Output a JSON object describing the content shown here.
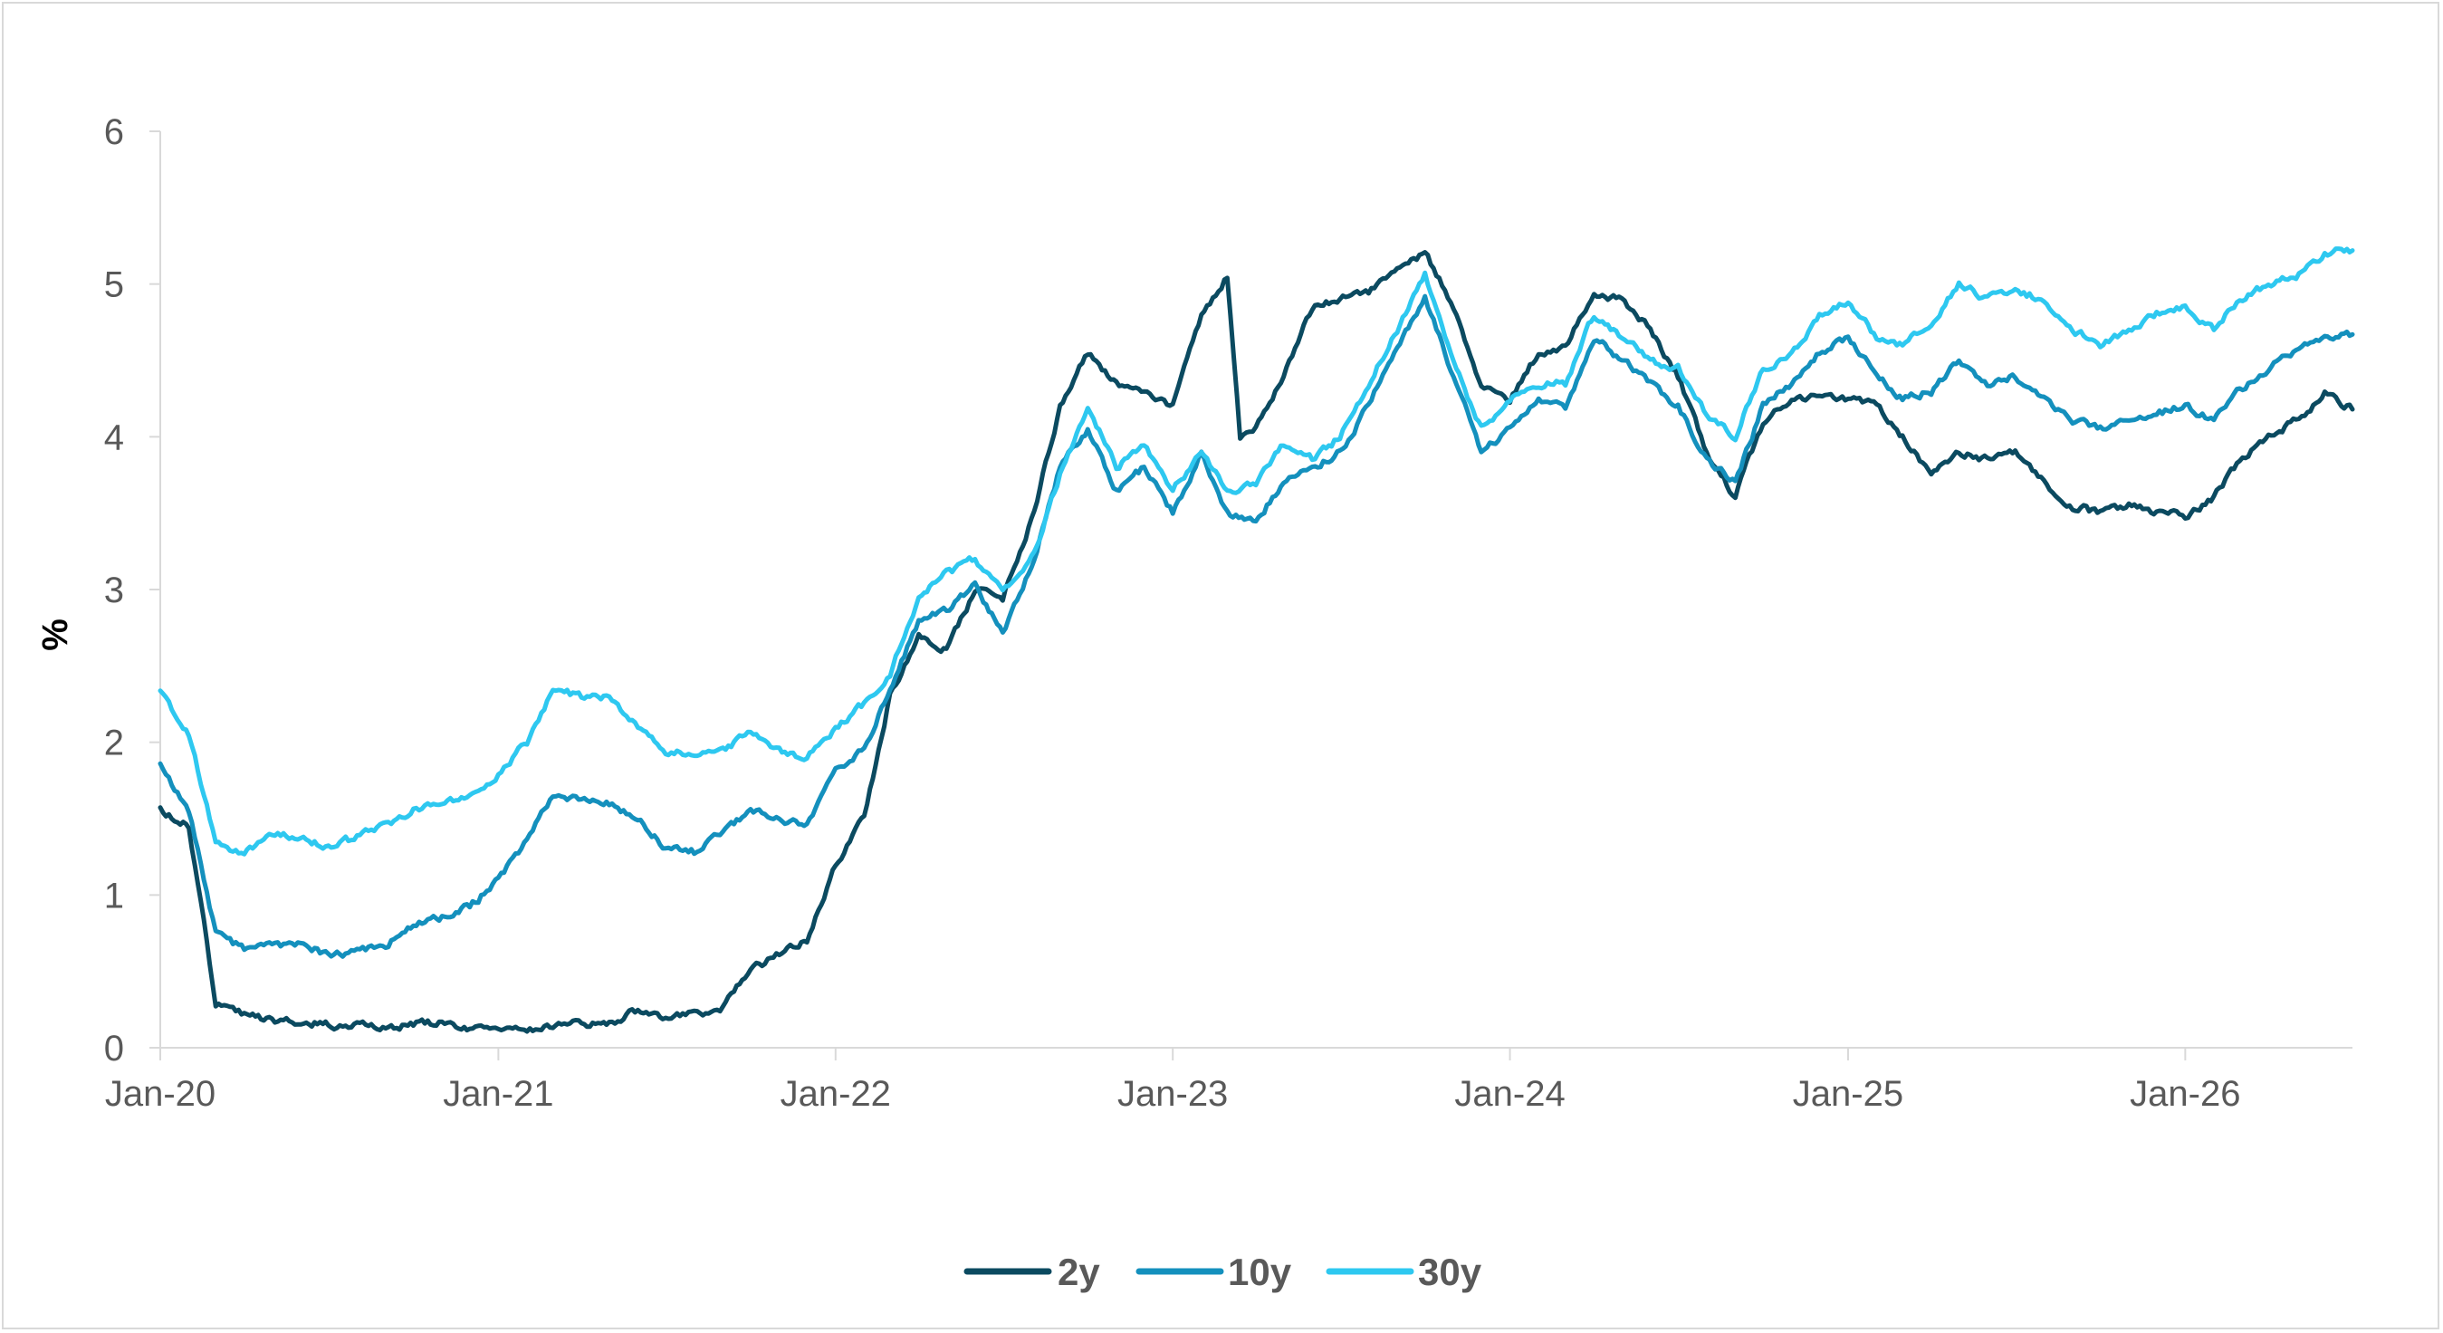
{
  "chart_data": {
    "type": "line",
    "xlabel": "",
    "ylabel": "%",
    "ylim": [
      0,
      6
    ],
    "yticks": [
      0,
      1,
      2,
      3,
      4,
      5,
      6
    ],
    "xlim": [
      "2020-01",
      "2026-07"
    ],
    "xticks": [
      {
        "date": "2020-01",
        "label": "Jan-20"
      },
      {
        "date": "2021-01",
        "label": "Jan-21"
      },
      {
        "date": "2022-01",
        "label": "Jan-22"
      },
      {
        "date": "2023-01",
        "label": "Jan-23"
      },
      {
        "date": "2024-01",
        "label": "Jan-24"
      },
      {
        "date": "2025-01",
        "label": "Jan-25"
      },
      {
        "date": "2026-01",
        "label": "Jan-26"
      }
    ],
    "grid": false,
    "legend_position": "bottom",
    "series": [
      {
        "name": "2y",
        "color": "#0b4a60",
        "points": [
          [
            "2020-01",
            1.56
          ],
          [
            "2020-02",
            1.45
          ],
          [
            "2020-03",
            0.3
          ],
          [
            "2020-04",
            0.22
          ],
          [
            "2020-05",
            0.17
          ],
          [
            "2020-06",
            0.18
          ],
          [
            "2020-07",
            0.15
          ],
          [
            "2020-08",
            0.14
          ],
          [
            "2020-09",
            0.14
          ],
          [
            "2020-10",
            0.15
          ],
          [
            "2020-11",
            0.17
          ],
          [
            "2020-12",
            0.13
          ],
          [
            "2021-01",
            0.12
          ],
          [
            "2021-02",
            0.12
          ],
          [
            "2021-03",
            0.15
          ],
          [
            "2021-04",
            0.16
          ],
          [
            "2021-05",
            0.16
          ],
          [
            "2021-06",
            0.25
          ],
          [
            "2021-07",
            0.2
          ],
          [
            "2021-08",
            0.22
          ],
          [
            "2021-09",
            0.27
          ],
          [
            "2021-10",
            0.5
          ],
          [
            "2021-11",
            0.62
          ],
          [
            "2021-12",
            0.7
          ],
          [
            "2022-01",
            1.2
          ],
          [
            "2022-02",
            1.5
          ],
          [
            "2022-03",
            2.3
          ],
          [
            "2022-04",
            2.7
          ],
          [
            "2022-05",
            2.6
          ],
          [
            "2022-06",
            3.0
          ],
          [
            "2022-07",
            2.95
          ],
          [
            "2022-08",
            3.45
          ],
          [
            "2022-09",
            4.2
          ],
          [
            "2022-10",
            4.55
          ],
          [
            "2022-11",
            4.35
          ],
          [
            "2022-12",
            4.3
          ],
          [
            "2023-01",
            4.2
          ],
          [
            "2023-02",
            4.8
          ],
          [
            "2023-03",
            5.05
          ],
          [
            "2023-03-15",
            4.0
          ],
          [
            "2023-04",
            4.05
          ],
          [
            "2023-05",
            4.4
          ],
          [
            "2023-06",
            4.85
          ],
          [
            "2023-07",
            4.9
          ],
          [
            "2023-08",
            4.95
          ],
          [
            "2023-09",
            5.1
          ],
          [
            "2023-10",
            5.2
          ],
          [
            "2023-11",
            4.85
          ],
          [
            "2023-12",
            4.35
          ],
          [
            "2024-01",
            4.25
          ],
          [
            "2024-02",
            4.55
          ],
          [
            "2024-03",
            4.6
          ],
          [
            "2024-04",
            4.95
          ],
          [
            "2024-05",
            4.9
          ],
          [
            "2024-06",
            4.7
          ],
          [
            "2024-07",
            4.4
          ],
          [
            "2024-08",
            3.9
          ],
          [
            "2024-09",
            3.6
          ],
          [
            "2024-10",
            4.1
          ],
          [
            "2024-11",
            4.25
          ],
          [
            "2024-12",
            4.25
          ],
          [
            "2025-01",
            4.25
          ],
          [
            "2025-02",
            4.2
          ],
          [
            "2025-03",
            4.0
          ],
          [
            "2025-04",
            3.75
          ],
          [
            "2025-05",
            3.9
          ],
          [
            "2025-06",
            3.85
          ],
          [
            "2025-07",
            3.9
          ],
          [
            "2025-08",
            3.7
          ],
          [
            "2025-09",
            3.55
          ],
          [
            "2025-10",
            3.5
          ],
          [
            "2025-11",
            3.55
          ],
          [
            "2025-12",
            3.5
          ],
          [
            "2026-01",
            3.48
          ],
          [
            "2026-02",
            3.6
          ],
          [
            "2026-03",
            3.85
          ],
          [
            "2026-04",
            4.0
          ],
          [
            "2026-05",
            4.1
          ],
          [
            "2026-06",
            4.28
          ],
          [
            "2026-07",
            4.18
          ]
        ]
      },
      {
        "name": "10y",
        "color": "#1490bd",
        "points": [
          [
            "2020-01",
            1.85
          ],
          [
            "2020-02",
            1.55
          ],
          [
            "2020-03",
            0.75
          ],
          [
            "2020-04",
            0.65
          ],
          [
            "2020-05",
            0.66
          ],
          [
            "2020-06",
            0.7
          ],
          [
            "2020-07",
            0.6
          ],
          [
            "2020-08",
            0.62
          ],
          [
            "2020-09",
            0.68
          ],
          [
            "2020-10",
            0.8
          ],
          [
            "2020-11",
            0.85
          ],
          [
            "2020-12",
            0.92
          ],
          [
            "2021-01",
            1.1
          ],
          [
            "2021-02",
            1.35
          ],
          [
            "2021-03",
            1.65
          ],
          [
            "2021-04",
            1.62
          ],
          [
            "2021-05",
            1.6
          ],
          [
            "2021-06",
            1.5
          ],
          [
            "2021-07",
            1.3
          ],
          [
            "2021-08",
            1.28
          ],
          [
            "2021-09",
            1.4
          ],
          [
            "2021-10",
            1.55
          ],
          [
            "2021-11",
            1.5
          ],
          [
            "2021-12",
            1.45
          ],
          [
            "2022-01",
            1.8
          ],
          [
            "2022-02",
            1.95
          ],
          [
            "2022-03",
            2.35
          ],
          [
            "2022-04",
            2.8
          ],
          [
            "2022-05",
            2.85
          ],
          [
            "2022-06",
            3.05
          ],
          [
            "2022-07",
            2.7
          ],
          [
            "2022-08",
            3.15
          ],
          [
            "2022-09",
            3.8
          ],
          [
            "2022-10",
            4.05
          ],
          [
            "2022-11",
            3.65
          ],
          [
            "2022-12",
            3.8
          ],
          [
            "2023-01",
            3.5
          ],
          [
            "2023-02",
            3.9
          ],
          [
            "2023-03",
            3.5
          ],
          [
            "2023-04",
            3.45
          ],
          [
            "2023-05",
            3.7
          ],
          [
            "2023-06",
            3.8
          ],
          [
            "2023-07",
            3.9
          ],
          [
            "2023-08",
            4.2
          ],
          [
            "2023-09",
            4.6
          ],
          [
            "2023-10",
            4.9
          ],
          [
            "2023-11",
            4.4
          ],
          [
            "2023-12",
            3.9
          ],
          [
            "2024-01",
            4.05
          ],
          [
            "2024-02",
            4.25
          ],
          [
            "2024-03",
            4.2
          ],
          [
            "2024-04",
            4.65
          ],
          [
            "2024-05",
            4.5
          ],
          [
            "2024-06",
            4.35
          ],
          [
            "2024-07",
            4.2
          ],
          [
            "2024-08",
            3.85
          ],
          [
            "2024-09",
            3.7
          ],
          [
            "2024-10",
            4.2
          ],
          [
            "2024-11",
            4.35
          ],
          [
            "2024-12",
            4.55
          ],
          [
            "2025-01",
            4.65
          ],
          [
            "2025-02",
            4.4
          ],
          [
            "2025-03",
            4.25
          ],
          [
            "2025-04",
            4.3
          ],
          [
            "2025-05",
            4.5
          ],
          [
            "2025-06",
            4.35
          ],
          [
            "2025-07",
            4.4
          ],
          [
            "2025-08",
            4.25
          ],
          [
            "2025-09",
            4.1
          ],
          [
            "2025-10",
            4.05
          ],
          [
            "2025-11",
            4.1
          ],
          [
            "2025-12",
            4.15
          ],
          [
            "2026-01",
            4.2
          ],
          [
            "2026-02",
            4.1
          ],
          [
            "2026-03",
            4.3
          ],
          [
            "2026-04",
            4.45
          ],
          [
            "2026-05",
            4.55
          ],
          [
            "2026-06",
            4.65
          ],
          [
            "2026-07",
            4.67
          ]
        ]
      },
      {
        "name": "30y",
        "color": "#2ec8f0",
        "points": [
          [
            "2020-01",
            2.33
          ],
          [
            "2020-02",
            2.05
          ],
          [
            "2020-03",
            1.35
          ],
          [
            "2020-04",
            1.28
          ],
          [
            "2020-05",
            1.38
          ],
          [
            "2020-06",
            1.4
          ],
          [
            "2020-07",
            1.3
          ],
          [
            "2020-08",
            1.38
          ],
          [
            "2020-09",
            1.45
          ],
          [
            "2020-10",
            1.55
          ],
          [
            "2020-11",
            1.6
          ],
          [
            "2020-12",
            1.65
          ],
          [
            "2021-01",
            1.8
          ],
          [
            "2021-02",
            2.0
          ],
          [
            "2021-03",
            2.35
          ],
          [
            "2021-04",
            2.3
          ],
          [
            "2021-05",
            2.3
          ],
          [
            "2021-06",
            2.1
          ],
          [
            "2021-07",
            1.95
          ],
          [
            "2021-08",
            1.93
          ],
          [
            "2021-09",
            1.95
          ],
          [
            "2021-10",
            2.05
          ],
          [
            "2021-11",
            1.95
          ],
          [
            "2021-12",
            1.9
          ],
          [
            "2022-01",
            2.1
          ],
          [
            "2022-02",
            2.25
          ],
          [
            "2022-03",
            2.45
          ],
          [
            "2022-04",
            2.95
          ],
          [
            "2022-05",
            3.1
          ],
          [
            "2022-06",
            3.2
          ],
          [
            "2022-07",
            3.0
          ],
          [
            "2022-08",
            3.2
          ],
          [
            "2022-09",
            3.75
          ],
          [
            "2022-10",
            4.2
          ],
          [
            "2022-11",
            3.8
          ],
          [
            "2022-12",
            3.95
          ],
          [
            "2023-01",
            3.65
          ],
          [
            "2023-02",
            3.9
          ],
          [
            "2023-03",
            3.65
          ],
          [
            "2023-04",
            3.7
          ],
          [
            "2023-05",
            3.95
          ],
          [
            "2023-06",
            3.85
          ],
          [
            "2023-07",
            4.0
          ],
          [
            "2023-08",
            4.35
          ],
          [
            "2023-09",
            4.7
          ],
          [
            "2023-10",
            5.05
          ],
          [
            "2023-11",
            4.5
          ],
          [
            "2023-12",
            4.05
          ],
          [
            "2024-01",
            4.25
          ],
          [
            "2024-02",
            4.35
          ],
          [
            "2024-03",
            4.35
          ],
          [
            "2024-04",
            4.8
          ],
          [
            "2024-05",
            4.65
          ],
          [
            "2024-06",
            4.5
          ],
          [
            "2024-07",
            4.45
          ],
          [
            "2024-08",
            4.15
          ],
          [
            "2024-09",
            4.0
          ],
          [
            "2024-10",
            4.45
          ],
          [
            "2024-11",
            4.55
          ],
          [
            "2024-12",
            4.8
          ],
          [
            "2025-01",
            4.9
          ],
          [
            "2025-02",
            4.65
          ],
          [
            "2025-03",
            4.6
          ],
          [
            "2025-04",
            4.75
          ],
          [
            "2025-05",
            5.0
          ],
          [
            "2025-06",
            4.9
          ],
          [
            "2025-07",
            4.95
          ],
          [
            "2025-08",
            4.9
          ],
          [
            "2025-09",
            4.7
          ],
          [
            "2025-10",
            4.6
          ],
          [
            "2025-11",
            4.7
          ],
          [
            "2025-12",
            4.8
          ],
          [
            "2026-01",
            4.85
          ],
          [
            "2026-02",
            4.7
          ],
          [
            "2026-03",
            4.9
          ],
          [
            "2026-04",
            5.0
          ],
          [
            "2026-05",
            5.05
          ],
          [
            "2026-06",
            5.2
          ],
          [
            "2026-07",
            5.22
          ]
        ]
      }
    ]
  }
}
